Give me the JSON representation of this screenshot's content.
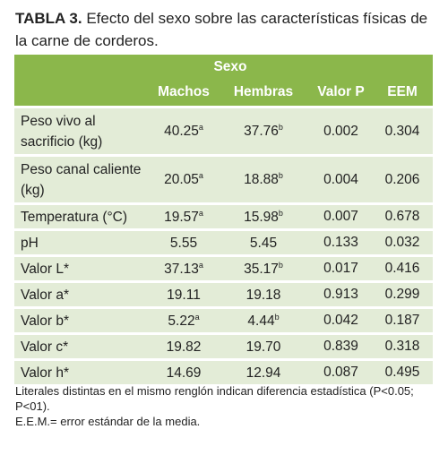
{
  "title": {
    "label": "TABLA 3.",
    "text": " Efecto del sexo sobre las características físicas de la carne de corderos."
  },
  "table": {
    "group_header": "Sexo",
    "columns": [
      "",
      "Machos",
      "Hembras",
      "Valor P",
      "EEM"
    ],
    "rows": [
      {
        "label": "Peso vivo al sacrificio (kg)",
        "machos": "40.25",
        "machos_sup": "a",
        "hembras": "37.76",
        "hembras_sup": "b",
        "p": "0.002",
        "eem": "0.304"
      },
      {
        "label": "Peso canal caliente (kg)",
        "machos": "20.05",
        "machos_sup": "a",
        "hembras": "18.88",
        "hembras_sup": "b",
        "p": "0.004",
        "eem": "0.206"
      },
      {
        "label": "Temperatura (°C)",
        "machos": "19.57",
        "machos_sup": "a",
        "hembras": "15.98",
        "hembras_sup": "b",
        "p": "0.007",
        "eem": "0.678"
      },
      {
        "label": "pH",
        "machos": "5.55",
        "machos_sup": "",
        "hembras": "5.45",
        "hembras_sup": "",
        "p": "0.133",
        "eem": "0.032"
      },
      {
        "label": "Valor L*",
        "machos": "37.13",
        "machos_sup": "a",
        "hembras": "35.17",
        "hembras_sup": "b",
        "p": "0.017",
        "eem": "0.416"
      },
      {
        "label": "Valor a*",
        "machos": "19.11",
        "machos_sup": "",
        "hembras": "19.18",
        "hembras_sup": "",
        "p": "0.913",
        "eem": "0.299"
      },
      {
        "label": "Valor b*",
        "machos": "5.22",
        "machos_sup": "a",
        "hembras": "4.44",
        "hembras_sup": "b",
        "p": "0.042",
        "eem": "0.187"
      },
      {
        "label": "Valor c*",
        "machos": "19.82",
        "machos_sup": "",
        "hembras": "19.70",
        "hembras_sup": "",
        "p": "0.839",
        "eem": "0.318"
      },
      {
        "label": "Valor h*",
        "machos": "14.69",
        "machos_sup": "",
        "hembras": "12.94",
        "hembras_sup": "",
        "p": "0.087",
        "eem": "0.495"
      }
    ]
  },
  "notes": {
    "line1": "Literales distintas en el mismo renglón indican diferencia estadística (P<0.05; P<01).",
    "line2": "E.E.M.= error estándar de la media."
  },
  "colors": {
    "header_bg": "#8bb74b",
    "row_bg": "#e3ecd7"
  }
}
